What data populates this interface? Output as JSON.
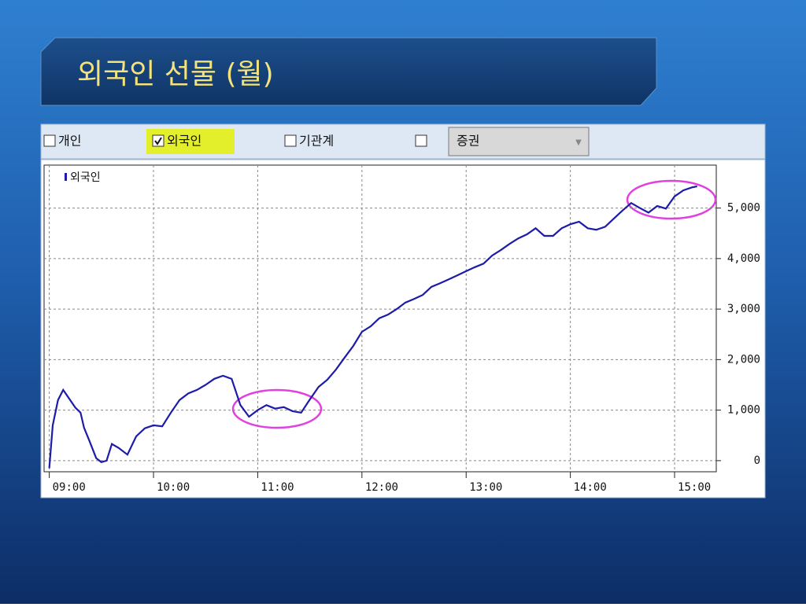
{
  "header": {
    "title": "외국인 선물 (월)"
  },
  "toolbar": {
    "checkboxes": [
      {
        "label": "개인",
        "checked": false
      },
      {
        "label": "외국인",
        "checked": true
      },
      {
        "label": "기관계",
        "checked": false
      }
    ],
    "dropdown": "증권"
  },
  "chart_data": {
    "type": "line",
    "x": [
      "09:00",
      "09:02",
      "09:05",
      "09:08",
      "09:12",
      "09:15",
      "09:18",
      "09:20",
      "09:23",
      "09:27",
      "09:30",
      "09:33",
      "09:36",
      "09:40",
      "09:45",
      "09:50",
      "09:55",
      "10:00",
      "10:05",
      "10:10",
      "10:15",
      "10:20",
      "10:25",
      "10:30",
      "10:35",
      "10:40",
      "10:45",
      "10:50",
      "10:55",
      "11:00",
      "11:05",
      "11:10",
      "11:15",
      "11:20",
      "11:25",
      "11:30",
      "11:35",
      "11:40",
      "11:45",
      "11:50",
      "11:55",
      "12:00",
      "12:05",
      "12:10",
      "12:15",
      "12:20",
      "12:25",
      "12:30",
      "12:35",
      "12:40",
      "12:45",
      "12:50",
      "12:55",
      "13:00",
      "13:05",
      "13:10",
      "13:15",
      "13:20",
      "13:25",
      "13:30",
      "13:35",
      "13:40",
      "13:45",
      "13:50",
      "13:55",
      "14:00",
      "14:05",
      "14:10",
      "14:15",
      "14:20",
      "14:25",
      "14:30",
      "14:35",
      "14:40",
      "14:45",
      "14:50",
      "14:55",
      "15:00",
      "15:05",
      "15:10",
      "15:13"
    ],
    "series": [
      {
        "name": "외국인",
        "color": "#1c1ca8",
        "values": [
          -150,
          700,
          1200,
          1400,
          1200,
          1050,
          950,
          650,
          400,
          50,
          -30,
          0,
          330,
          250,
          120,
          480,
          640,
          700,
          680,
          950,
          1200,
          1330,
          1400,
          1500,
          1620,
          1680,
          1620,
          1100,
          870,
          1000,
          1100,
          1030,
          1060,
          980,
          950,
          1210,
          1460,
          1600,
          1800,
          2040,
          2270,
          2550,
          2660,
          2820,
          2890,
          3000,
          3130,
          3200,
          3280,
          3440,
          3510,
          3590,
          3670,
          3750,
          3830,
          3900,
          4060,
          4170,
          4290,
          4400,
          4480,
          4600,
          4450,
          4450,
          4600,
          4680,
          4730,
          4600,
          4570,
          4630,
          4790,
          4950,
          5100,
          5000,
          4910,
          5040,
          4990,
          5230,
          5350,
          5410,
          5430
        ]
      }
    ],
    "xlim": [
      "08:57",
      "15:24"
    ],
    "xticks": [
      "09:00",
      "10:00",
      "11:00",
      "12:00",
      "13:00",
      "14:00",
      "15:00"
    ],
    "ylim": [
      -220,
      5850
    ],
    "yticks": [
      0,
      {
        "value": 1000,
        "label": "1,000"
      },
      {
        "value": 2000,
        "label": "2,000"
      },
      {
        "value": 3000,
        "label": "3,000"
      },
      {
        "value": 4000,
        "label": "4,000"
      },
      {
        "value": 5000,
        "label": "5,000"
      }
    ],
    "grid": true
  }
}
